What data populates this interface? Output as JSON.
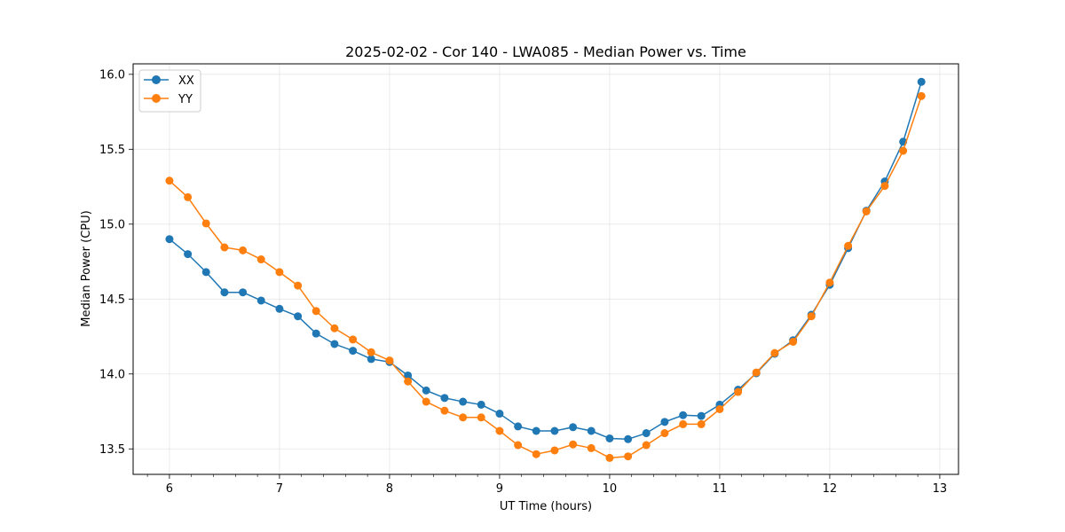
{
  "chart_data": {
    "type": "line",
    "title": "2025-02-02 - Cor 140 - LWA085 - Median Power vs. Time",
    "xlabel": "UT Time (hours)",
    "ylabel": "Median Power (CPU)",
    "xlim": [
      5.67,
      13.17
    ],
    "ylim": [
      13.33,
      16.07
    ],
    "xticks": [
      6,
      7,
      8,
      9,
      10,
      11,
      12,
      13
    ],
    "xtick_labels": [
      "6",
      "7",
      "8",
      "9",
      "10",
      "11",
      "12",
      "13"
    ],
    "yticks": [
      13.5,
      14.0,
      14.5,
      15.0,
      15.5,
      16.0
    ],
    "ytick_labels": [
      "13.5",
      "14.0",
      "14.5",
      "15.0",
      "15.5",
      "16.0"
    ],
    "grid": true,
    "legend_position": "top-left",
    "x": [
      6.0,
      6.167,
      6.333,
      6.5,
      6.667,
      6.833,
      7.0,
      7.167,
      7.333,
      7.5,
      7.667,
      7.833,
      8.0,
      8.167,
      8.333,
      8.5,
      8.667,
      8.833,
      9.0,
      9.167,
      9.333,
      9.5,
      9.667,
      9.833,
      10.0,
      10.167,
      10.333,
      10.5,
      10.667,
      10.833,
      11.0,
      11.167,
      11.333,
      11.5,
      11.667,
      11.833,
      12.0,
      12.167,
      12.333,
      12.5,
      12.667,
      12.833
    ],
    "series": [
      {
        "name": "XX",
        "color": "#1f77b4",
        "values": [
          14.9,
          14.8,
          14.68,
          14.545,
          14.545,
          14.49,
          14.435,
          14.385,
          14.27,
          14.2,
          14.155,
          14.1,
          14.08,
          13.99,
          13.89,
          13.84,
          13.815,
          13.795,
          13.735,
          13.65,
          13.62,
          13.62,
          13.645,
          13.62,
          13.57,
          13.565,
          13.605,
          13.68,
          13.725,
          13.72,
          13.795,
          13.895,
          14.005,
          14.135,
          14.225,
          14.395,
          14.595,
          14.84,
          15.09,
          15.285,
          15.55,
          15.95
        ]
      },
      {
        "name": "YY",
        "color": "#ff7f0e",
        "values": [
          15.29,
          15.18,
          15.005,
          14.845,
          14.825,
          14.765,
          14.68,
          14.59,
          14.42,
          14.305,
          14.23,
          14.145,
          14.09,
          13.95,
          13.815,
          13.755,
          13.71,
          13.71,
          13.62,
          13.525,
          13.465,
          13.49,
          13.53,
          13.505,
          13.44,
          13.45,
          13.525,
          13.605,
          13.665,
          13.665,
          13.765,
          13.88,
          14.01,
          14.14,
          14.215,
          14.385,
          14.61,
          14.855,
          15.085,
          15.255,
          15.49,
          15.855
        ]
      }
    ]
  }
}
